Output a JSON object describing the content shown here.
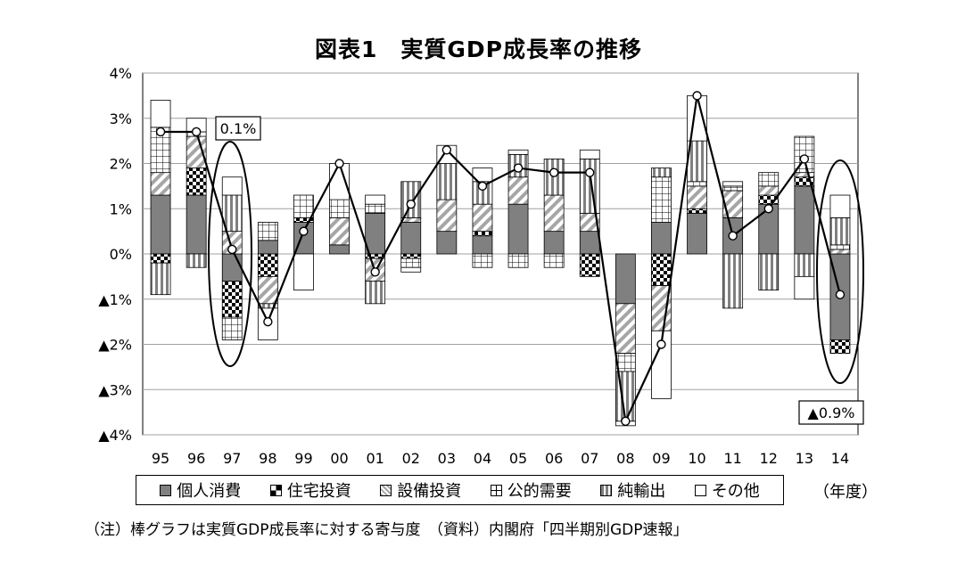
{
  "title": "図表1　実質GDP成長率の推移",
  "unit_label": "（年度）",
  "note": "（注）棒グラフは実質GDP成長率に対する寄与度　（資料）内閣府「四半期別GDP速報」",
  "annotations": {
    "a97": "0.1%",
    "a14": "▲0.9%"
  },
  "legend": [
    {
      "name": "個人消費",
      "key": "consumption"
    },
    {
      "name": "住宅投資",
      "key": "housing"
    },
    {
      "name": "設備投資",
      "key": "capex"
    },
    {
      "name": "公的需要",
      "key": "public"
    },
    {
      "name": "純輸出",
      "key": "netexport"
    },
    {
      "name": "その他",
      "key": "other"
    }
  ],
  "chart_data": {
    "type": "bar",
    "stacked": true,
    "title": "図表1　実質GDP成長率の推移",
    "xlabel": "（年度）",
    "ylabel": "",
    "ylim": [
      -4,
      4
    ],
    "yticks": [
      "▲4%",
      "▲3%",
      "▲2%",
      "▲1%",
      "0%",
      "1%",
      "2%",
      "3%",
      "4%"
    ],
    "ytick_values": [
      -4,
      -3,
      -2,
      -1,
      0,
      1,
      2,
      3,
      4
    ],
    "grid": true,
    "legend_position": "bottom",
    "categories": [
      "95",
      "96",
      "97",
      "98",
      "99",
      "00",
      "01",
      "02",
      "03",
      "04",
      "05",
      "06",
      "07",
      "08",
      "09",
      "10",
      "11",
      "12",
      "13",
      "14"
    ],
    "series": [
      {
        "name": "個人消費",
        "values": [
          1.3,
          1.3,
          -0.6,
          0.3,
          0.7,
          0.2,
          0.9,
          0.7,
          0.5,
          0.4,
          1.1,
          0.5,
          0.5,
          -1.1,
          0.7,
          0.9,
          0.8,
          1.1,
          1.5,
          -1.9
        ]
      },
      {
        "name": "住宅投資",
        "values": [
          -0.2,
          0.6,
          -0.8,
          -0.5,
          0.1,
          0.0,
          -0.1,
          -0.1,
          0.0,
          0.1,
          0.0,
          0.0,
          -0.5,
          0.0,
          -0.7,
          0.1,
          0.0,
          0.2,
          0.2,
          -0.3
        ]
      },
      {
        "name": "設備投資",
        "values": [
          0.5,
          0.7,
          0.5,
          -0.6,
          0.0,
          0.6,
          -0.5,
          0.1,
          0.7,
          0.6,
          0.6,
          0.8,
          0.4,
          -1.1,
          -1.0,
          0.5,
          0.6,
          0.2,
          0.1,
          0.1
        ]
      },
      {
        "name": "公的需要",
        "values": [
          1.0,
          0.1,
          -0.5,
          0.4,
          0.5,
          0.4,
          0.2,
          -0.2,
          0.0,
          -0.3,
          -0.3,
          -0.3,
          0.0,
          -0.4,
          1.0,
          0.1,
          0.1,
          0.3,
          0.8,
          0.1
        ]
      },
      {
        "name": "純輸出",
        "values": [
          -0.7,
          -0.3,
          0.8,
          -0.1,
          0.0,
          0.0,
          -0.5,
          0.8,
          0.8,
          0.5,
          0.5,
          0.8,
          1.2,
          -1.1,
          0.2,
          0.9,
          -1.2,
          -0.8,
          -0.5,
          0.6
        ]
      },
      {
        "name": "その他",
        "values": [
          0.6,
          0.3,
          0.4,
          -0.7,
          -0.8,
          0.8,
          0.2,
          -0.1,
          0.4,
          0.3,
          0.1,
          0.0,
          0.2,
          -0.1,
          -1.5,
          1.0,
          0.1,
          0.0,
          -0.5,
          0.5
        ]
      }
    ],
    "line": {
      "name": "実質GDP成長率",
      "values": [
        2.7,
        2.7,
        0.1,
        -1.5,
        0.5,
        2.0,
        -0.4,
        1.1,
        2.3,
        1.5,
        1.9,
        1.8,
        1.8,
        -3.7,
        -2.0,
        3.5,
        0.4,
        1.0,
        2.1,
        -0.9
      ]
    }
  }
}
